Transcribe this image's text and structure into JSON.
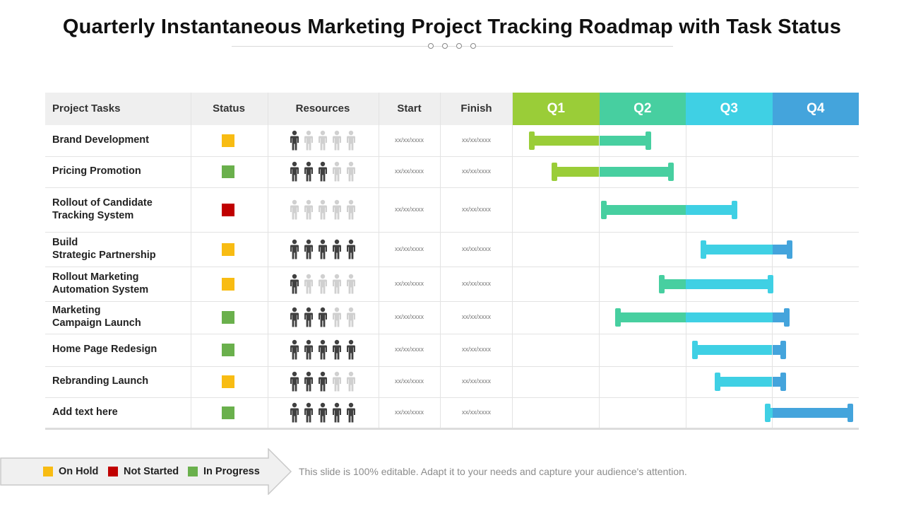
{
  "title": "Quarterly Instantaneous Marketing Project Tracking Roadmap with Task Status",
  "headers": {
    "tasks": "Project Tasks",
    "status": "Status",
    "resources": "Resources",
    "start": "Start",
    "finish": "Finish"
  },
  "status_colors": {
    "on_hold": "#f8bc13",
    "not_started": "#c00000",
    "in_progress": "#6ab04c"
  },
  "person_colors": {
    "active": "#404040",
    "inactive": "#d0d0d0"
  },
  "chart_data": {
    "type": "gantt",
    "title": "Quarterly Instantaneous Marketing Project Tracking Roadmap with Task Status",
    "quarters": [
      {
        "label": "Q1",
        "color": "#9acd38"
      },
      {
        "label": "Q2",
        "color": "#47cfa0"
      },
      {
        "label": "Q3",
        "color": "#3fd0e4"
      },
      {
        "label": "Q4",
        "color": "#44a4dc"
      }
    ],
    "axis_unit": "quarters",
    "xlim": [
      0,
      4
    ],
    "tasks": [
      {
        "name": "Brand Development",
        "status": "on_hold",
        "resources_active": 1,
        "resources_total": 5,
        "start": "xx/xx/xxxx",
        "finish": "xx/xx/xxxx",
        "bar_start": 0.22,
        "bar_end": 1.57
      },
      {
        "name": "Pricing Promotion",
        "status": "in_progress",
        "resources_active": 3,
        "resources_total": 5,
        "start": "xx/xx/xxxx",
        "finish": "xx/xx/xxxx",
        "bar_start": 0.48,
        "bar_end": 1.83
      },
      {
        "name": "Rollout of Candidate\nTracking System",
        "status": "not_started",
        "resources_active": 0,
        "resources_total": 5,
        "start": "xx/xx/xxxx",
        "finish": "xx/xx/xxxx",
        "bar_start": 1.05,
        "bar_end": 2.56
      },
      {
        "name": "Build\nStrategic Partnership",
        "status": "on_hold",
        "resources_active": 5,
        "resources_total": 5,
        "start": "xx/xx/xxxx",
        "finish": "xx/xx/xxxx",
        "bar_start": 2.2,
        "bar_end": 3.2
      },
      {
        "name": "Rollout Marketing\nAutomation  System",
        "status": "on_hold",
        "resources_active": 1,
        "resources_total": 5,
        "start": "xx/xx/xxxx",
        "finish": "xx/xx/xxxx",
        "bar_start": 1.72,
        "bar_end": 2.98
      },
      {
        "name": "Marketing\nCampaign Launch",
        "status": "in_progress",
        "resources_active": 3,
        "resources_total": 5,
        "start": "xx/xx/xxxx",
        "finish": "xx/xx/xxxx",
        "bar_start": 1.22,
        "bar_end": 3.17
      },
      {
        "name": "Home Page Redesign",
        "status": "in_progress",
        "resources_active": 5,
        "resources_total": 5,
        "start": "xx/xx/xxxx",
        "finish": "xx/xx/xxxx",
        "bar_start": 2.11,
        "bar_end": 3.13
      },
      {
        "name": "Rebranding Launch",
        "status": "on_hold",
        "resources_active": 3,
        "resources_total": 5,
        "start": "xx/xx/xxxx",
        "finish": "xx/xx/xxxx",
        "bar_start": 2.37,
        "bar_end": 3.13
      },
      {
        "name": "Add  text here",
        "status": "in_progress",
        "resources_active": 5,
        "resources_total": 5,
        "start": "xx/xx/xxxx",
        "finish": "xx/xx/xxxx",
        "bar_start": 2.95,
        "bar_end": 3.9
      }
    ]
  },
  "legend": [
    {
      "key": "on_hold",
      "label": "On Hold"
    },
    {
      "key": "not_started",
      "label": "Not Started"
    },
    {
      "key": "in_progress",
      "label": "In Progress"
    }
  ],
  "footnote": "This slide is 100% editable. Adapt it to your needs and capture your audience's attention."
}
